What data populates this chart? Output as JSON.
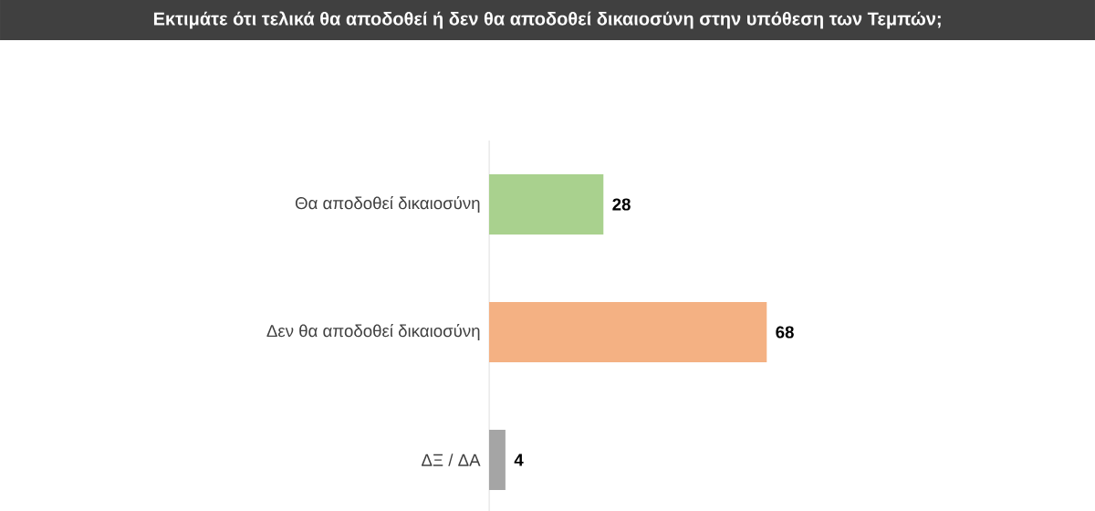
{
  "chart_data": {
    "type": "bar",
    "orientation": "horizontal",
    "title": "Εκτιμάτε ότι τελικά θα αποδοθεί ή δεν θα αποδοθεί δικαιοσύνη στην υπόθεση των Τεμπών;",
    "categories": [
      "Θα αποδοθεί δικαιοσύνη",
      "Δεν θα αποδοθεί δικαιοσύνη",
      "ΔΞ / ΔΑ"
    ],
    "values": [
      28,
      68,
      4
    ],
    "colors": [
      "#a9d18e",
      "#f4b183",
      "#a5a5a5"
    ],
    "data_labels": true,
    "tick_labels": "y",
    "grid": false
  }
}
